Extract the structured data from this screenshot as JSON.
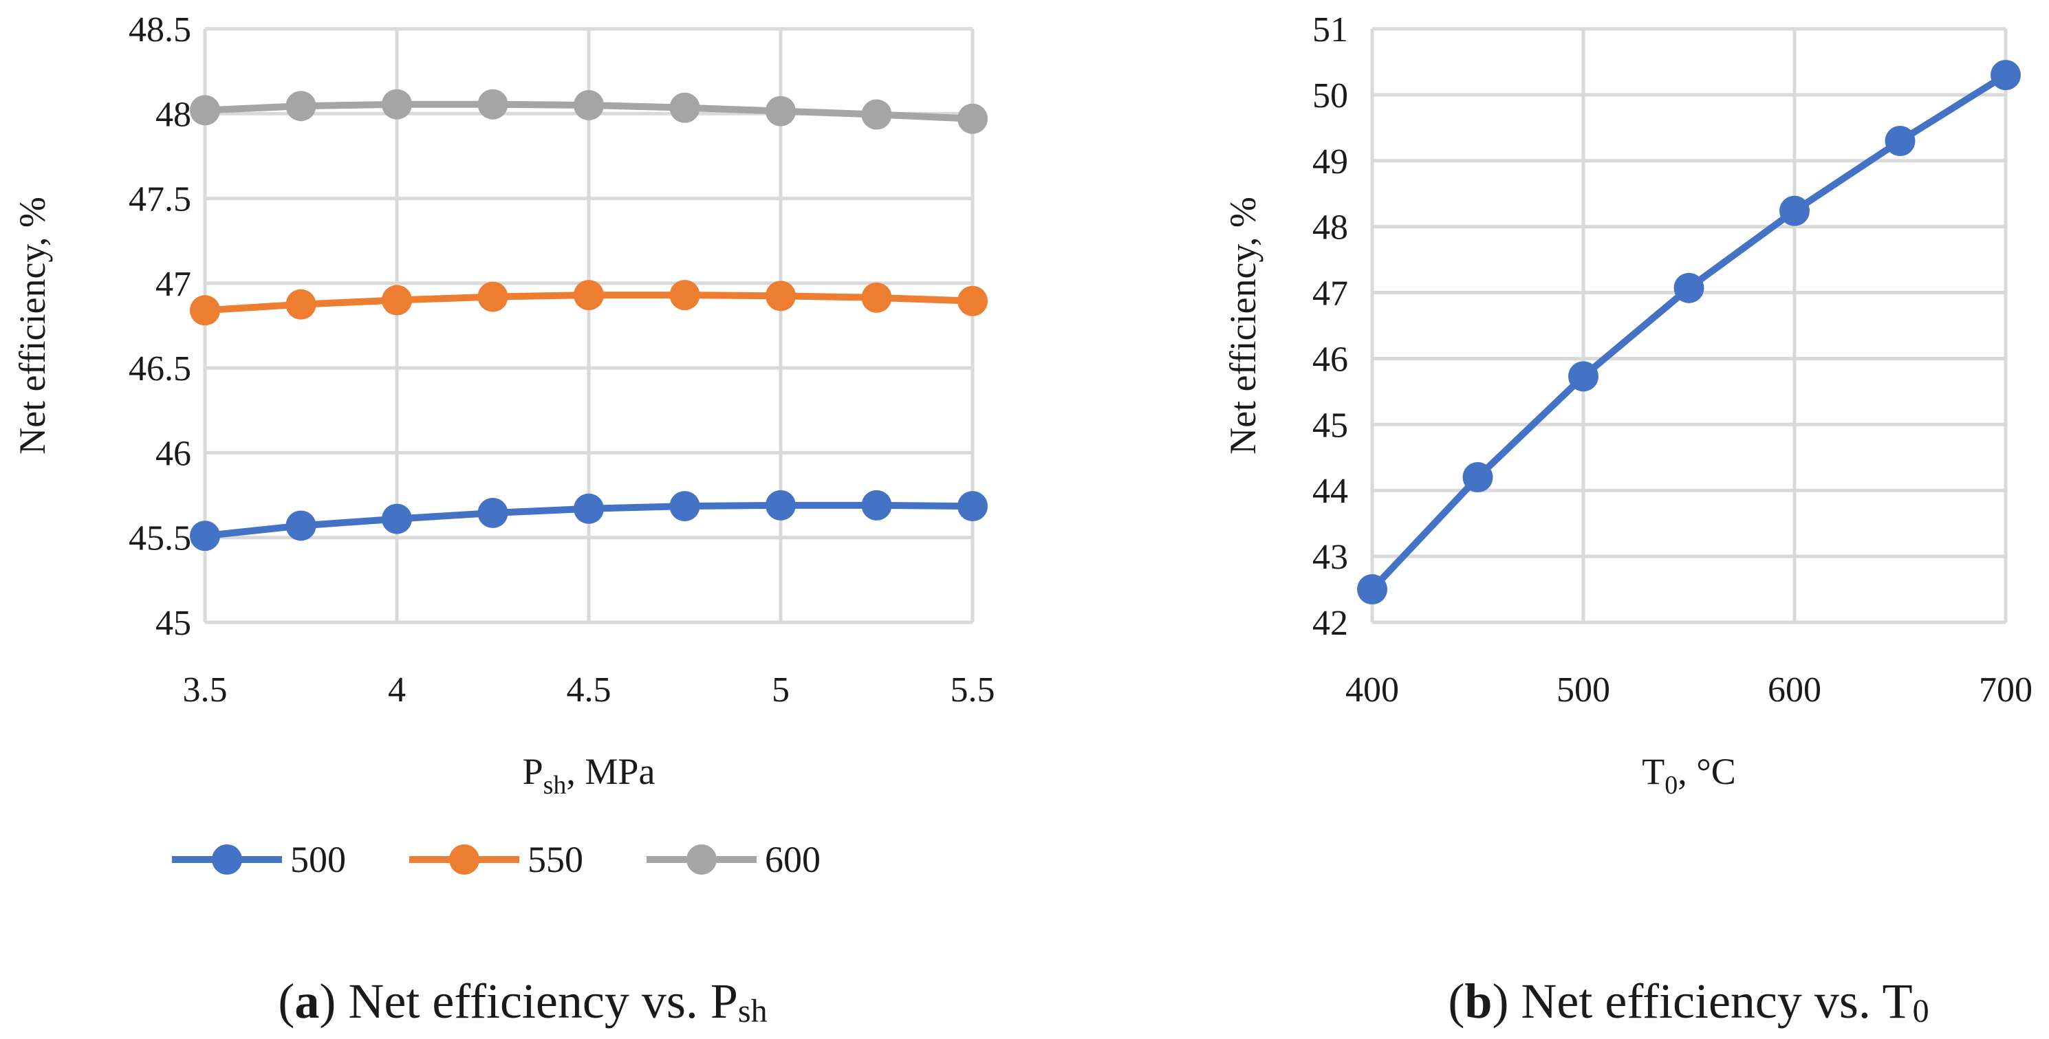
{
  "chart_data": [
    {
      "panel": "a",
      "type": "line",
      "x": [
        3.5,
        3.75,
        4,
        4.25,
        4.5,
        4.75,
        5,
        5.25,
        5.5
      ],
      "series": [
        {
          "name": "500",
          "color": "#4472C4",
          "values": [
            45.51,
            45.57,
            45.61,
            45.645,
            45.67,
            45.685,
            45.69,
            45.69,
            45.685
          ]
        },
        {
          "name": "550",
          "color": "#ED7D31",
          "values": [
            46.84,
            46.875,
            46.9,
            46.92,
            46.93,
            46.93,
            46.925,
            46.915,
            46.895
          ]
        },
        {
          "name": "600",
          "color": "#A5A5A5",
          "values": [
            48.02,
            48.045,
            48.055,
            48.055,
            48.05,
            48.035,
            48.015,
            47.995,
            47.97
          ]
        }
      ],
      "xlim": [
        3.5,
        5.5
      ],
      "ylim": [
        45,
        48.5
      ],
      "xticks": [
        3.5,
        4,
        4.5,
        5,
        5.5
      ],
      "yticks": [
        45,
        45.5,
        46,
        46.5,
        47,
        47.5,
        48,
        48.5
      ],
      "xtick_labels": [
        "3.5",
        "4",
        "4.5",
        "5",
        "5.5"
      ],
      "ytick_labels": [
        "45",
        "45.5",
        "46",
        "46.5",
        "47",
        "47.5",
        "48",
        "48.5"
      ],
      "xlabel": {
        "main": "P",
        "sub": "sh",
        "rest": ", MPa"
      },
      "ylabel": "Net efficiency, %",
      "grid": true,
      "legend": "bottom",
      "caption": {
        "label": "a",
        "text": " Net efficiency vs. P",
        "sub": "sh"
      }
    },
    {
      "panel": "b",
      "type": "line",
      "x": [
        400,
        450,
        500,
        550,
        600,
        650,
        700
      ],
      "series": [
        {
          "name": "Net efficiency",
          "color": "#4472C4",
          "values": [
            42.5,
            44.2,
            45.73,
            47.07,
            48.24,
            49.3,
            50.3
          ]
        }
      ],
      "xlim": [
        400,
        700
      ],
      "ylim": [
        42,
        51
      ],
      "xticks": [
        400,
        500,
        600,
        700
      ],
      "yticks": [
        42,
        43,
        44,
        45,
        46,
        47,
        48,
        49,
        50,
        51
      ],
      "xtick_labels": [
        "400",
        "500",
        "600",
        "700"
      ],
      "ytick_labels": [
        "42",
        "43",
        "44",
        "45",
        "46",
        "47",
        "48",
        "49",
        "50",
        "51"
      ],
      "xlabel": {
        "main": "T",
        "sub": "0",
        "rest": ", °C"
      },
      "ylabel": "Net efficiency, %",
      "grid": true,
      "legend": "none",
      "caption": {
        "label": "b",
        "text": " Net efficiency vs. T",
        "sub": "0"
      }
    }
  ]
}
